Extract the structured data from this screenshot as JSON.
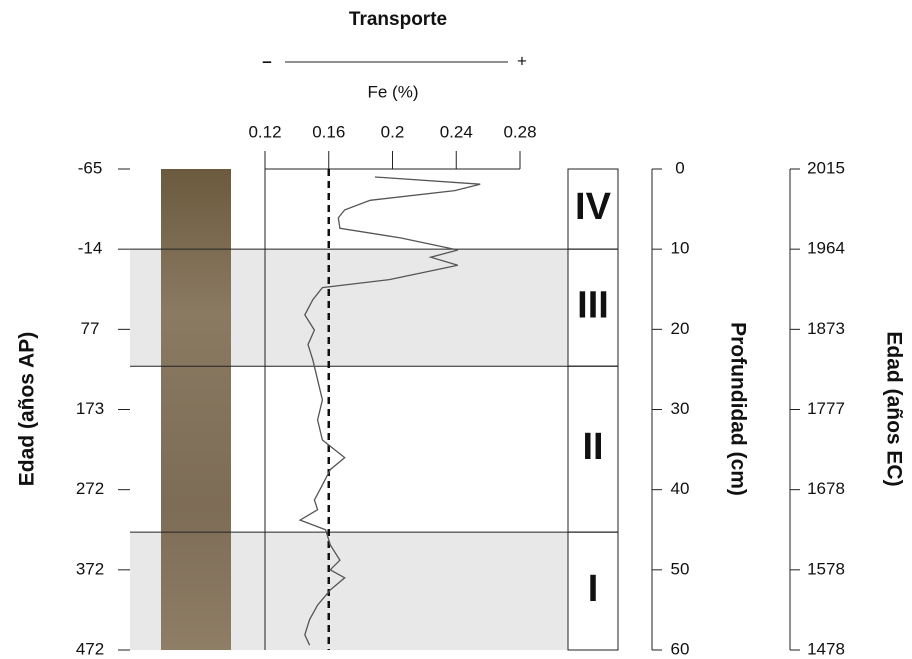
{
  "chart_data": {
    "type": "line",
    "transport": {
      "title": "Transporte",
      "minus": "–",
      "plus": "+"
    },
    "x_label": "Fe (%)",
    "xlim": [
      0.12,
      0.28
    ],
    "xticks": [
      0.12,
      0.16,
      {
        "value": 0.2,
        "label": "0.2"
      },
      0.24,
      0.28
    ],
    "reference_x": 0.16,
    "color": "#555555",
    "depth": [
      1.0,
      1.9,
      2.7,
      3.9,
      5.1,
      6.1,
      7.4,
      8.6,
      10.1,
      11.0,
      12.0,
      13.8,
      14.8,
      16.3,
      18.2,
      20.1,
      21.9,
      23.8,
      26.3,
      28.8,
      31.3,
      33.8,
      36.0,
      37.5,
      39.4,
      41.3,
      42.5,
      43.8,
      45.0,
      46.9,
      48.8,
      50.0,
      51.0,
      52.5,
      54.4,
      56.2,
      58.1,
      59.4
    ],
    "values": [
      0.189,
      0.255,
      0.239,
      0.186,
      0.17,
      0.166,
      0.167,
      0.205,
      0.241,
      0.224,
      0.241,
      0.198,
      0.156,
      0.15,
      0.145,
      0.151,
      0.147,
      0.15,
      0.153,
      0.156,
      0.153,
      0.156,
      0.17,
      0.161,
      0.156,
      0.151,
      0.153,
      0.142,
      0.158,
      0.161,
      0.167,
      0.161,
      0.17,
      0.161,
      0.153,
      0.148,
      0.145,
      0.148
    ],
    "y_label": "Profundidad (cm)",
    "ylim": [
      0,
      60
    ],
    "yticks": [
      0,
      10,
      20,
      30,
      40,
      50,
      60
    ],
    "age_ap": {
      "label": "Edad (años AP)",
      "ticks": [
        -65,
        -14,
        77,
        173,
        272,
        372,
        472
      ]
    },
    "age_ec": {
      "label": "Edad (años EC)",
      "ticks": [
        2015,
        1964,
        1873,
        1777,
        1678,
        1578,
        1478
      ]
    },
    "zones": [
      {
        "label": "IV",
        "top": 0,
        "bottom": 10,
        "shaded": false
      },
      {
        "label": "III",
        "top": 10,
        "bottom": 24.6,
        "shaded": true
      },
      {
        "label": "II",
        "top": 24.6,
        "bottom": 45.3,
        "shaded": false
      },
      {
        "label": "I",
        "top": 45.3,
        "bottom": 60,
        "shaded": true
      }
    ]
  }
}
